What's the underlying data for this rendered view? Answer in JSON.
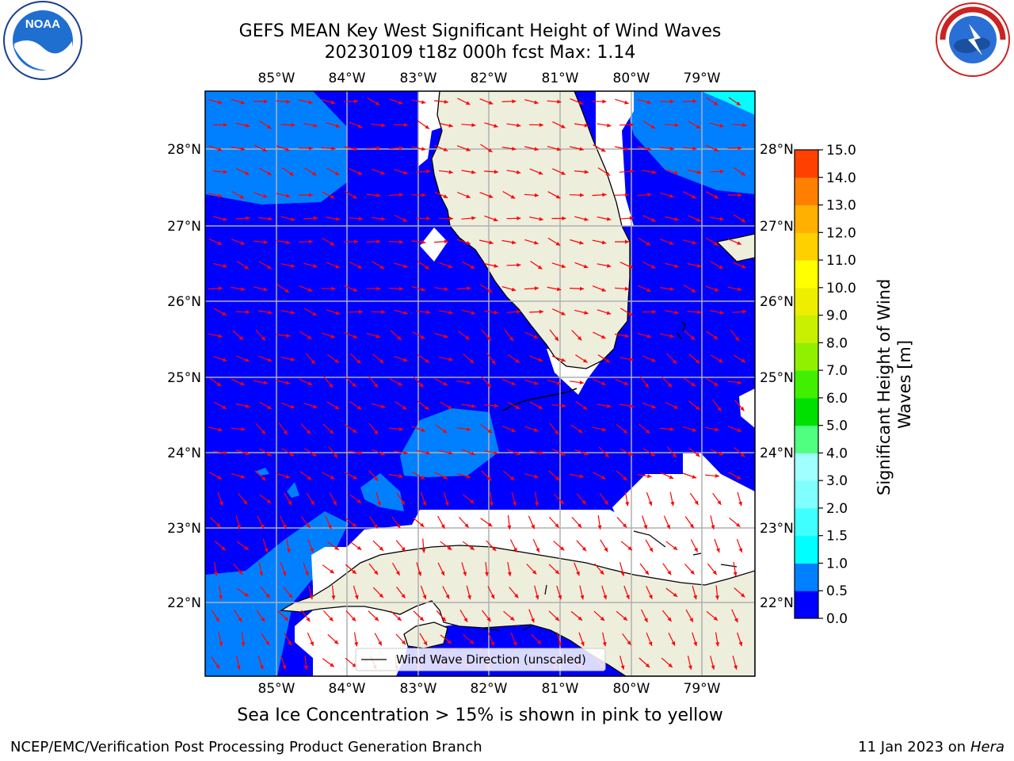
{
  "header": {
    "title_line1": "GEFS MEAN Key West Significant Height of Wind Waves",
    "title_line2": "20230109 t18z 000h fcst   Max: 1.14"
  },
  "logos": {
    "left": {
      "icon": "noaa-logo",
      "text": "NOAA"
    },
    "right": {
      "icon": "nws-logo",
      "text": "NATIONAL WEATHER SERVICE"
    }
  },
  "map": {
    "lon_labels": [
      "85°W",
      "84°W",
      "83°W",
      "82°W",
      "81°W",
      "80°W",
      "79°W"
    ],
    "lat_labels": [
      "28°N",
      "27°N",
      "26°N",
      "25°N",
      "24°N",
      "23°N",
      "22°N"
    ],
    "legend_label": "Wind Wave Direction (unscaled)",
    "max_value": 1.14,
    "colors": {
      "ocean_low": "#0000ff",
      "ocean_mid": "#0080ff",
      "ocean_high": "#00ffff",
      "land": "#eeeedd",
      "arrow": "#ff0000",
      "grid": "#b0b0b0"
    }
  },
  "colorbar": {
    "label": "Significant Height of Wind Waves [m]",
    "ticks": [
      "0.0",
      "0.5",
      "1.0",
      "1.5",
      "2.0",
      "3.0",
      "4.0",
      "5.0",
      "6.0",
      "7.0",
      "8.0",
      "9.0",
      "10.0",
      "11.0",
      "12.0",
      "13.0",
      "14.0",
      "15.0"
    ],
    "colors": [
      "#0000ff",
      "#0080ff",
      "#00ffff",
      "#40ffff",
      "#80ffff",
      "#a0ffff",
      "#50ff80",
      "#00e000",
      "#40f000",
      "#90f000",
      "#c8f000",
      "#eeee00",
      "#ffff00",
      "#ffd000",
      "#ffb000",
      "#ff8000",
      "#ff4000",
      "#ff2000",
      "#ff0000"
    ]
  },
  "notes": {
    "ice": "Sea Ice Concentration > 15% is shown in pink to yellow"
  },
  "footer": {
    "left": "NCEP/EMC/Verification Post Processing Product Generation Branch",
    "right_date": "11 Jan 2023 on ",
    "right_host": "Hera"
  }
}
